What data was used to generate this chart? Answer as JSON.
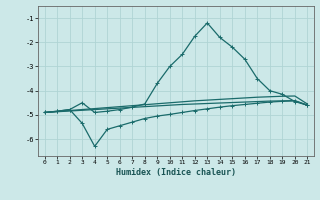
{
  "xlabel": "Humidex (Indice chaleur)",
  "bg_color": "#cce8e8",
  "grid_color": "#b0d4d4",
  "line_color": "#1a6b6b",
  "xlim": [
    -0.5,
    21.5
  ],
  "ylim": [
    -6.7,
    -0.5
  ],
  "yticks": [
    -1,
    -2,
    -3,
    -4,
    -5,
    -6
  ],
  "xticks": [
    0,
    1,
    2,
    3,
    4,
    5,
    6,
    7,
    8,
    9,
    10,
    11,
    12,
    13,
    14,
    15,
    16,
    17,
    18,
    19,
    20,
    21
  ],
  "lines": [
    {
      "x": [
        0,
        1,
        2,
        3,
        4,
        5,
        6,
        7,
        8,
        9,
        10,
        11,
        12,
        13,
        14,
        15,
        16,
        17,
        18,
        19,
        20,
        21
      ],
      "y": [
        -4.9,
        -4.87,
        -4.84,
        -4.81,
        -4.78,
        -4.75,
        -4.72,
        -4.69,
        -4.66,
        -4.63,
        -4.6,
        -4.57,
        -4.55,
        -4.53,
        -4.51,
        -4.49,
        -4.47,
        -4.45,
        -4.43,
        -4.42,
        -4.41,
        -4.6
      ],
      "marker": null,
      "lw": 0.9
    },
    {
      "x": [
        0,
        1,
        2,
        3,
        4,
        5,
        6,
        7,
        8,
        9,
        10,
        11,
        12,
        13,
        14,
        15,
        16,
        17,
        18,
        19,
        20,
        21
      ],
      "y": [
        -4.9,
        -4.86,
        -4.82,
        -4.78,
        -4.74,
        -4.7,
        -4.66,
        -4.62,
        -4.58,
        -4.54,
        -4.5,
        -4.46,
        -4.42,
        -4.39,
        -4.36,
        -4.33,
        -4.3,
        -4.27,
        -4.25,
        -4.23,
        -4.22,
        -4.55
      ],
      "marker": null,
      "lw": 0.9
    },
    {
      "x": [
        0,
        1,
        2,
        3,
        4,
        5,
        6,
        7,
        8,
        9,
        10,
        11,
        12,
        13,
        14,
        15,
        16,
        17,
        18,
        19,
        20,
        21
      ],
      "y": [
        -4.9,
        -4.85,
        -4.78,
        -5.35,
        -6.3,
        -5.6,
        -5.45,
        -5.3,
        -5.15,
        -5.05,
        -4.98,
        -4.9,
        -4.82,
        -4.75,
        -4.68,
        -4.62,
        -4.57,
        -4.52,
        -4.47,
        -4.44,
        -4.42,
        -4.6
      ],
      "marker": "+",
      "lw": 0.9
    },
    {
      "x": [
        0,
        1,
        2,
        3,
        4,
        5,
        6,
        7,
        8,
        9,
        10,
        11,
        12,
        13,
        14,
        15,
        16,
        17,
        18,
        19,
        20,
        21
      ],
      "y": [
        -4.9,
        -4.85,
        -4.78,
        -4.5,
        -4.9,
        -4.85,
        -4.78,
        -4.68,
        -4.55,
        -3.7,
        -3.0,
        -2.5,
        -1.75,
        -1.2,
        -1.8,
        -2.2,
        -2.7,
        -3.5,
        -4.0,
        -4.15,
        -4.45,
        -4.6
      ],
      "marker": "+",
      "lw": 0.9
    }
  ]
}
